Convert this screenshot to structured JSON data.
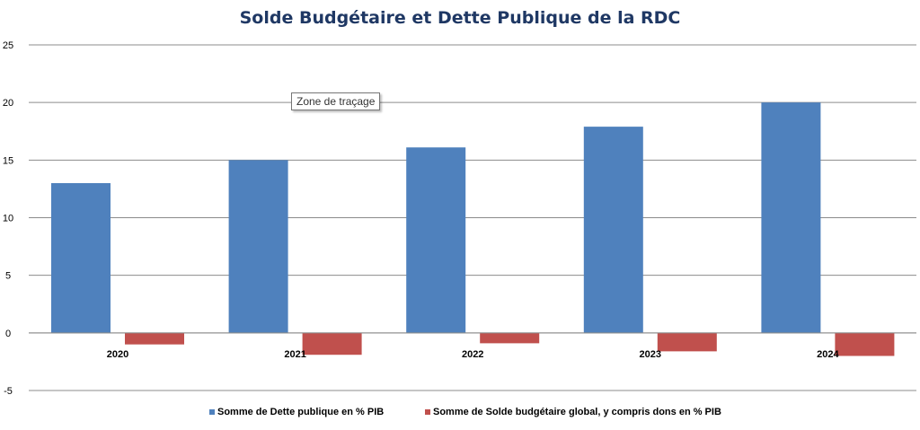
{
  "chart_data": {
    "type": "bar",
    "title": "Solde Budgétaire et Dette Publique de la RDC",
    "xlabel": "",
    "ylabel": "",
    "categories": [
      "2020",
      "2021",
      "2022",
      "2023",
      "2024"
    ],
    "series": [
      {
        "name": "Somme de Dette publique en % PIB",
        "color": "#4f81bd",
        "values": [
          13,
          15,
          16.1,
          17.9,
          20
        ]
      },
      {
        "name": "Somme de Solde budgétaire global, y compris dons en % PIB",
        "color": "#c0504d",
        "values": [
          -1,
          -1.9,
          -0.9,
          -1.6,
          -2
        ]
      }
    ],
    "ylim": [
      -5,
      25
    ],
    "yticks": [
      -5,
      0,
      5,
      10,
      15,
      20,
      25
    ],
    "grid": true,
    "legend_position": "bottom"
  },
  "tooltip": {
    "label": "Zone de traçage"
  }
}
